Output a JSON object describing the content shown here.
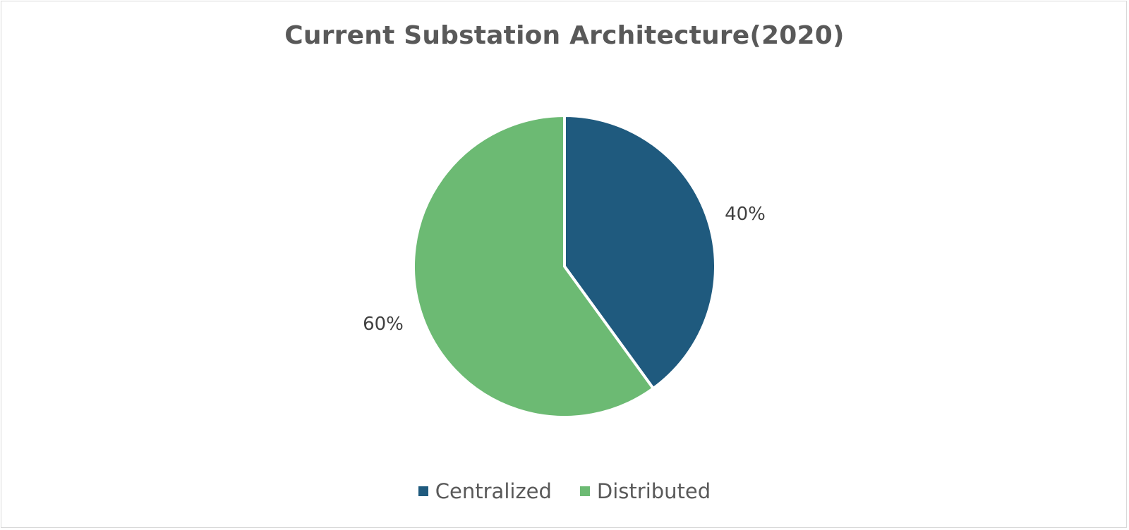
{
  "chart_data": {
    "type": "pie",
    "title": "Current Substation Architecture(2020)",
    "categories": [
      "Centralized",
      "Distributed"
    ],
    "values": [
      40,
      60
    ],
    "data_labels": [
      "40%",
      "60%"
    ],
    "colors": [
      "#1f5a7e",
      "#6cba73"
    ],
    "legend_position": "bottom",
    "start_angle": "top, clockwise"
  }
}
